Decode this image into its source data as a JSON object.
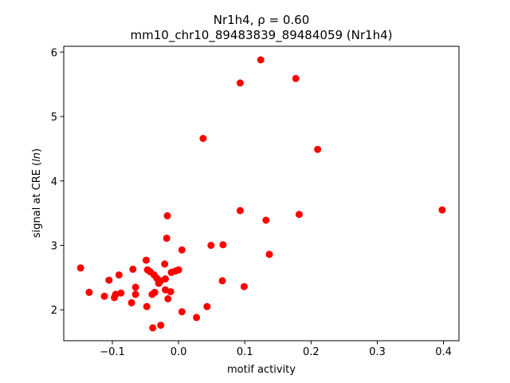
{
  "chart_data": {
    "type": "scatter",
    "title_line1": "Nr1h4, ρ = 0.60",
    "title_line2": "mm10_chr10_89483839_89484059 (Nr1h4)",
    "xlabel": "motif activity",
    "ylabel_prefix": "signal at CRE (",
    "ylabel_italic": "ln",
    "ylabel_suffix": ")",
    "xlim": [
      -0.1734,
      0.4234
    ],
    "ylim": [
      1.52,
      6.09
    ],
    "xticks": [
      -0.1,
      0.0,
      0.1,
      0.2,
      0.3,
      0.4
    ],
    "xtick_labels": [
      "−0.1",
      "0.0",
      "0.1",
      "0.2",
      "0.3",
      "0.4"
    ],
    "yticks": [
      2,
      3,
      4,
      5,
      6
    ],
    "ytick_labels": [
      "2",
      "3",
      "4",
      "5",
      "6"
    ],
    "grid": false,
    "marker_color": "#ff0000",
    "points": [
      [
        -0.148,
        2.65
      ],
      [
        -0.135,
        2.27
      ],
      [
        -0.112,
        2.21
      ],
      [
        -0.105,
        2.46
      ],
      [
        -0.097,
        2.19
      ],
      [
        -0.095,
        2.24
      ],
      [
        -0.09,
        2.54
      ],
      [
        -0.087,
        2.26
      ],
      [
        -0.071,
        2.11
      ],
      [
        -0.069,
        2.63
      ],
      [
        -0.065,
        2.35
      ],
      [
        -0.065,
        2.24
      ],
      [
        -0.049,
        2.77
      ],
      [
        -0.048,
        2.05
      ],
      [
        -0.047,
        2.62
      ],
      [
        -0.043,
        2.59
      ],
      [
        -0.04,
        2.24
      ],
      [
        -0.039,
        1.72
      ],
      [
        -0.037,
        2.54
      ],
      [
        -0.036,
        2.27
      ],
      [
        -0.033,
        2.49
      ],
      [
        -0.03,
        2.41
      ],
      [
        -0.027,
        1.76
      ],
      [
        -0.027,
        2.45
      ],
      [
        -0.021,
        2.71
      ],
      [
        -0.02,
        2.31
      ],
      [
        -0.02,
        2.48
      ],
      [
        -0.018,
        3.11
      ],
      [
        -0.017,
        3.46
      ],
      [
        -0.016,
        2.17
      ],
      [
        -0.012,
        2.28
      ],
      [
        -0.011,
        2.58
      ],
      [
        -0.005,
        2.6
      ],
      [
        0.0,
        2.62
      ],
      [
        0.005,
        1.97
      ],
      [
        0.005,
        2.93
      ],
      [
        0.027,
        1.88
      ],
      [
        0.037,
        4.66
      ],
      [
        0.043,
        2.05
      ],
      [
        0.049,
        3.0
      ],
      [
        0.066,
        2.45
      ],
      [
        0.067,
        3.01
      ],
      [
        0.093,
        5.52
      ],
      [
        0.093,
        3.54
      ],
      [
        0.099,
        2.36
      ],
      [
        0.124,
        5.88
      ],
      [
        0.132,
        3.39
      ],
      [
        0.137,
        2.86
      ],
      [
        0.177,
        5.59
      ],
      [
        0.182,
        3.48
      ],
      [
        0.21,
        4.49
      ],
      [
        0.398,
        3.55
      ]
    ]
  }
}
